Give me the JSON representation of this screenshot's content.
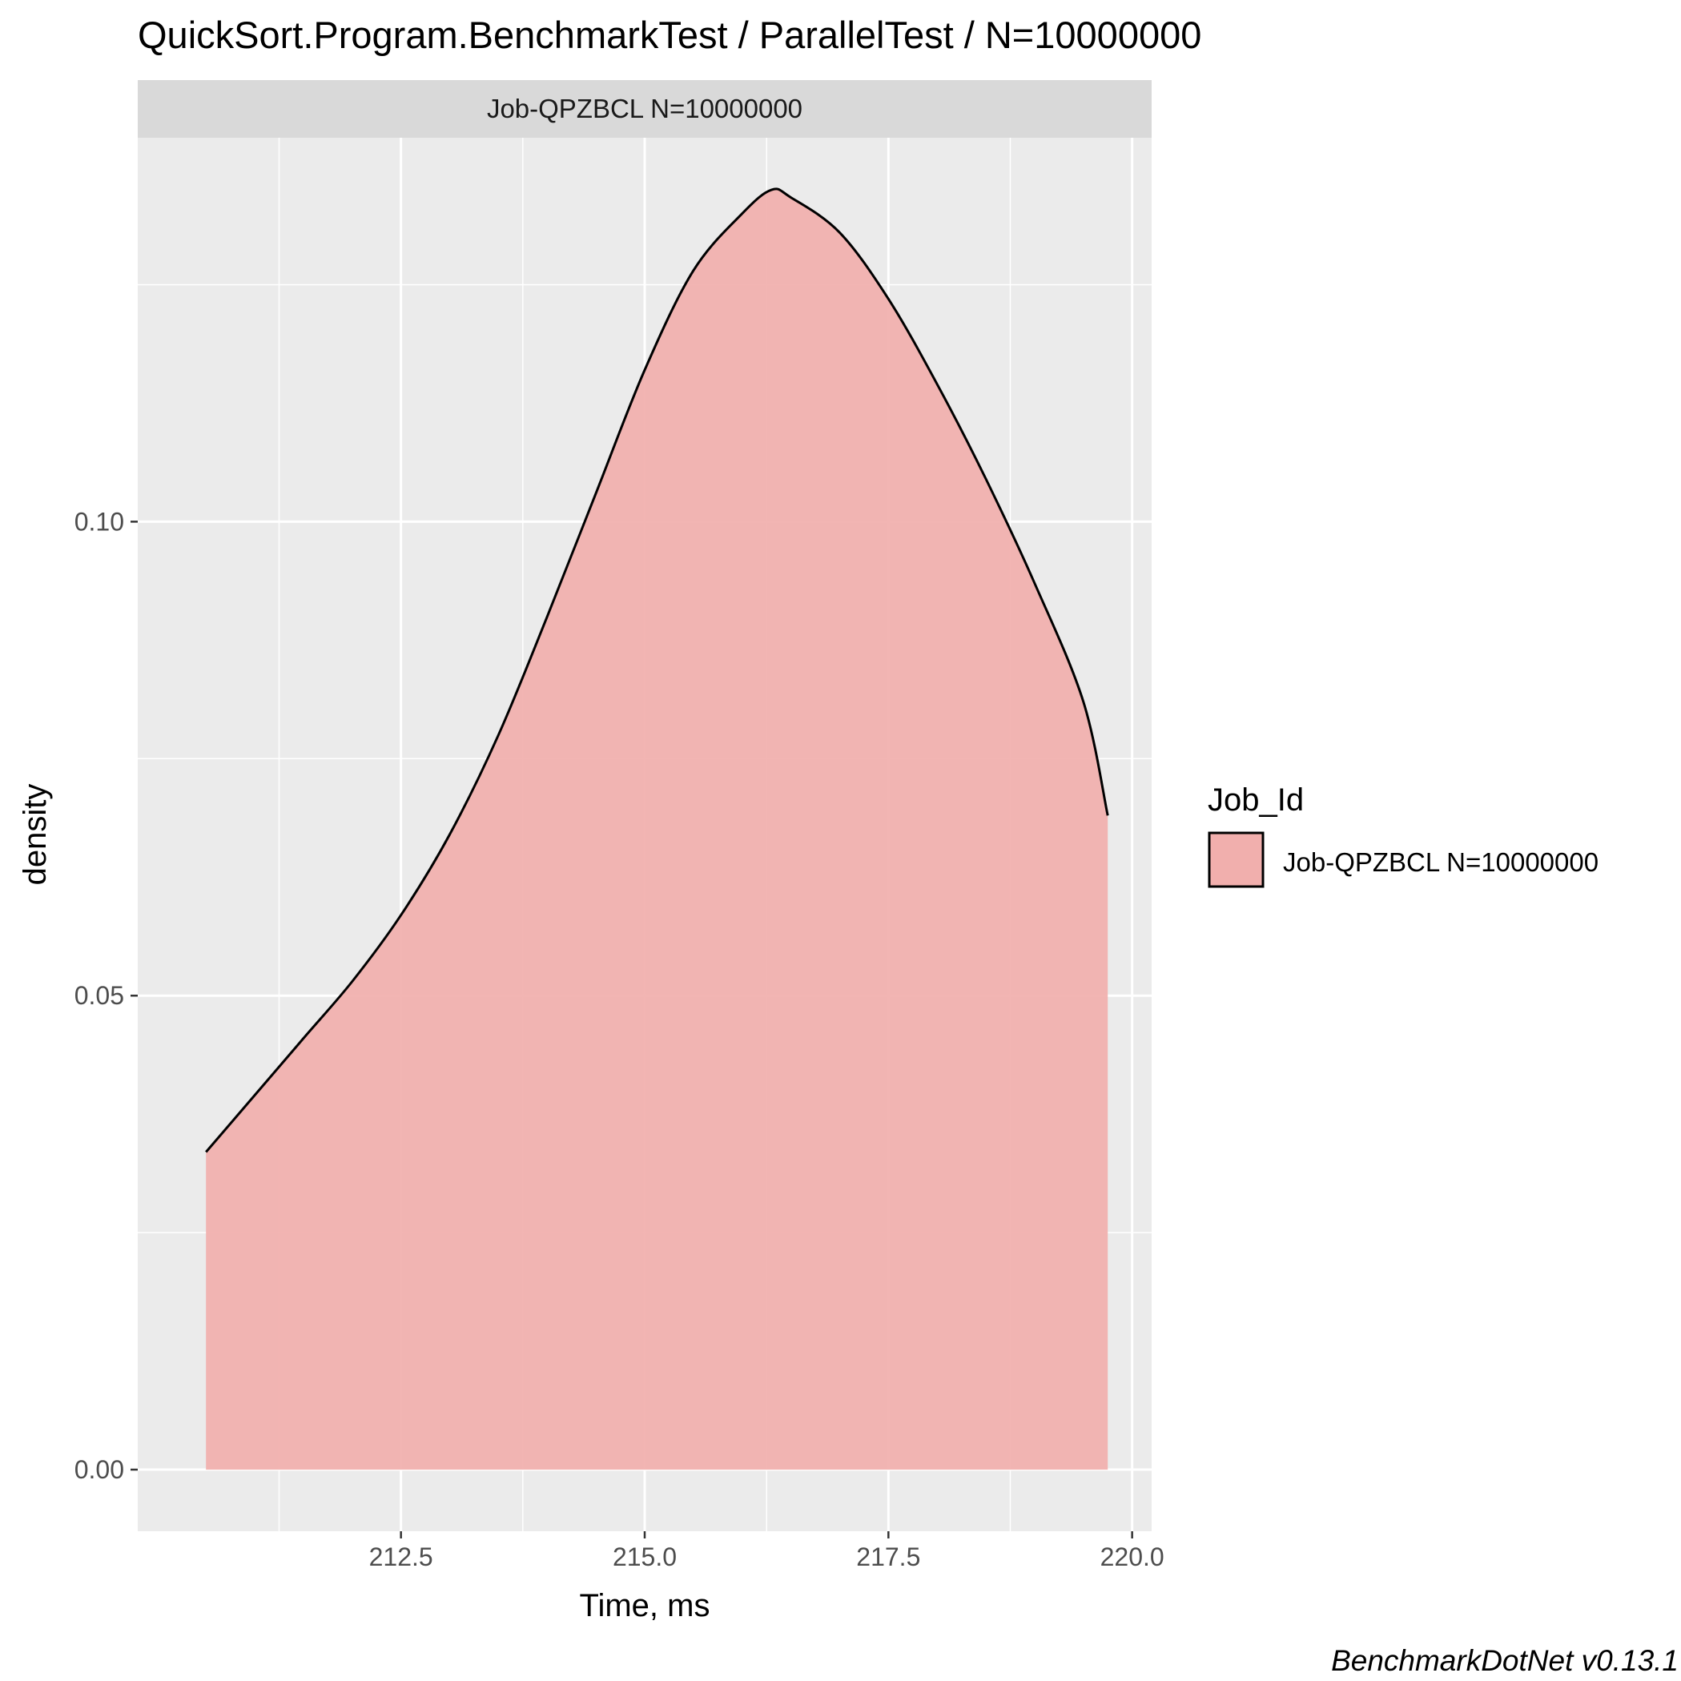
{
  "chart_data": {
    "type": "area",
    "title": "QuickSort.Program.BenchmarkTest / ParallelTest / N=10000000",
    "facet_label": "Job-QPZBCL N=10000000",
    "xlabel": "Time, ms",
    "ylabel": "density",
    "caption": "BenchmarkDotNet v0.13.1",
    "xlim": [
      209.8,
      220.2
    ],
    "ylim": [
      -0.0065,
      0.1405
    ],
    "x_ticks": [
      212.5,
      215.0,
      217.5,
      220.0
    ],
    "x_tick_labels": [
      "212.5",
      "215.0",
      "217.5",
      "220.0"
    ],
    "x_minor_ticks": [
      211.25,
      213.75,
      216.25,
      218.75
    ],
    "y_ticks": [
      0.0,
      0.05,
      0.1
    ],
    "y_tick_labels": [
      "0.00",
      "0.05",
      "0.10"
    ],
    "y_minor_ticks": [
      0.025,
      0.075,
      0.125
    ],
    "grid": true,
    "legend": {
      "title": "Job_Id",
      "position": "right"
    },
    "series": [
      {
        "name": "Job-QPZBCL N=10000000",
        "fill": "#f1afad",
        "stroke": "#000000",
        "x": [
          210.5,
          211.0,
          211.5,
          212.0,
          212.5,
          213.0,
          213.5,
          214.0,
          214.5,
          215.0,
          215.5,
          216.0,
          216.3,
          216.5,
          217.0,
          217.5,
          218.0,
          218.5,
          219.0,
          219.5,
          219.75
        ],
        "y": [
          0.0335,
          0.0395,
          0.0455,
          0.0515,
          0.0585,
          0.067,
          0.0775,
          0.09,
          0.103,
          0.116,
          0.1265,
          0.1325,
          0.135,
          0.1342,
          0.1305,
          0.1235,
          0.1145,
          0.1045,
          0.0935,
          0.081,
          0.069
        ]
      }
    ]
  }
}
